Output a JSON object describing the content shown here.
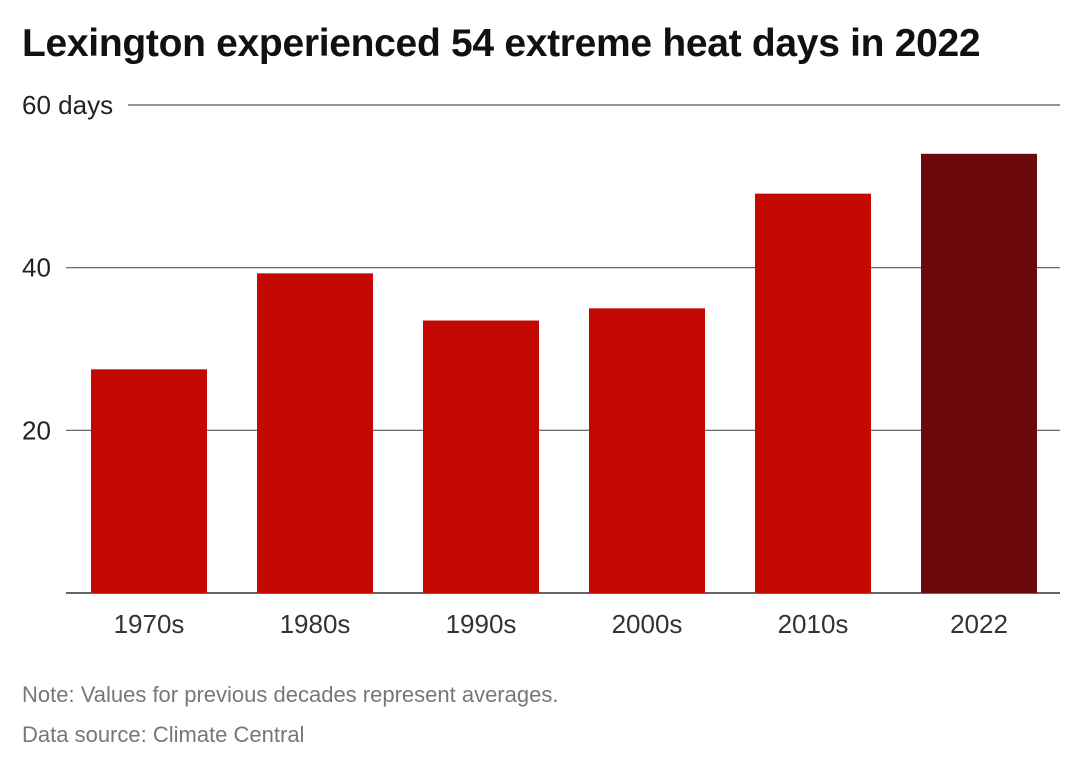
{
  "title": "Lexington experienced 54 extreme heat days in 2022",
  "note": "Note: Values for previous decades represent averages.",
  "source": "Data source: Climate Central",
  "colors": {
    "bar": "#c40902",
    "highlight": "#6a080a",
    "grid": "#555555"
  },
  "chart_data": {
    "type": "bar",
    "categories": [
      "1970s",
      "1980s",
      "1990s",
      "2000s",
      "2010s",
      "2022"
    ],
    "values": [
      27.5,
      39.3,
      33.5,
      35.0,
      49.1,
      54
    ],
    "highlight_index": 5,
    "ylim": [
      0,
      60
    ],
    "yticks": [
      20,
      40,
      60
    ],
    "ytick_labels": [
      "20",
      "40",
      "60 days"
    ],
    "grid": true,
    "xlabel": "",
    "ylabel": ""
  }
}
